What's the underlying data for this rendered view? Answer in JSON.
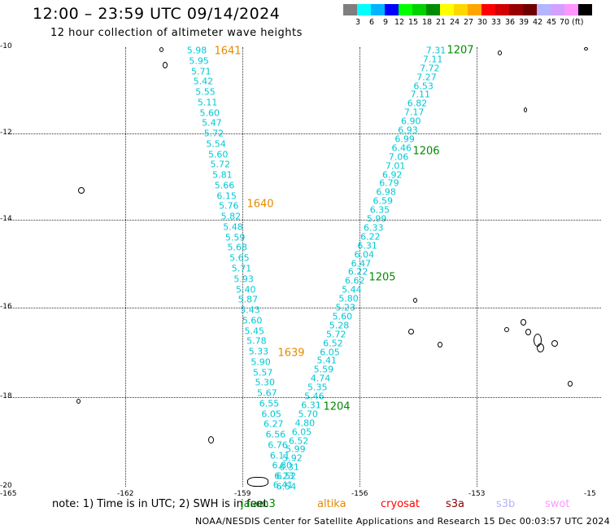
{
  "title": "12:00 – 23:59 UTC 09/14/2024",
  "subtitle": "12 hour collection of altimeter wave heights",
  "legend": {
    "colors": [
      "#7f7f7f",
      "#00ffff",
      "#00b4ff",
      "#0000ff",
      "#00ff00",
      "#00d200",
      "#008c00",
      "#ffff00",
      "#ffd700",
      "#ffa500",
      "#ff0000",
      "#d20000",
      "#960000",
      "#6e0000",
      "#b4b4ff",
      "#d2a0ff",
      "#ff96ff",
      "#000000"
    ],
    "labels": [
      "3",
      "6",
      "9",
      "12",
      "15",
      "18",
      "21",
      "24",
      "27",
      "30",
      "33",
      "36",
      "39",
      "42",
      "45",
      "70 (ft)"
    ]
  },
  "axes": {
    "lat_labels": [
      "-10",
      "-12",
      "-14",
      "-16",
      "-18",
      "-20"
    ],
    "lon_labels": [
      "-165",
      "-162",
      "-159",
      "-156",
      "-153",
      "-15"
    ]
  },
  "passes": [
    {
      "name": "1641",
      "color": "#e68a00"
    },
    {
      "name": "1640",
      "color": "#e68a00"
    },
    {
      "name": "1639",
      "color": "#e68a00"
    },
    {
      "name": "1207",
      "color": "#008c00"
    },
    {
      "name": "1206",
      "color": "#008c00"
    },
    {
      "name": "1205",
      "color": "#008c00"
    },
    {
      "name": "1204",
      "color": "#008c00"
    }
  ],
  "swh_left": [
    "5.98",
    "5.95",
    "5.71",
    "5.42",
    "5.55",
    "5.11",
    "5.60",
    "5.47",
    "5.72",
    "5.54",
    "5.60",
    "5.72",
    "5.81",
    "5.66",
    "6.15",
    "5.76",
    "5.82",
    "5.48",
    "5.59",
    "5.68",
    "5.65",
    "5.71",
    "5.93",
    "5.40",
    "5.87",
    "5.43",
    "5.60",
    "5.45",
    "5.78",
    "5.33",
    "5.90",
    "5.57",
    "5.30",
    "5.67",
    "6.55",
    "6.05",
    "6.27",
    "6.56",
    "6.76",
    "6.11",
    "6.80",
    "6.23",
    "6.54"
  ],
  "swh_right": [
    "7.31",
    "7.11",
    "7.72",
    "7.27",
    "6.53",
    "7.11",
    "6.82",
    "7.17",
    "6.90",
    "6.93",
    "6.99",
    "6.46",
    "7.06",
    "7.01",
    "6.92",
    "6.79",
    "6.98",
    "6.59",
    "6.35",
    "5.99",
    "6.33",
    "6.22",
    "6.31",
    "6.04",
    "6.47",
    "6.22",
    "6.62",
    "5.44",
    "5.80",
    "5.23",
    "5.60",
    "5.28",
    "5.72",
    "6.52",
    "6.05",
    "5.41",
    "5.59",
    "4.74",
    "5.35",
    "5.46",
    "6.31",
    "5.70",
    "4.80",
    "6.05",
    "6.52",
    "5.99",
    "5.92",
    "6.31",
    "6.52",
    "6.41"
  ],
  "note": "note:  1) Time is in UTC;  2) SWH is in feet",
  "satellites": [
    {
      "name": "jason3",
      "color": "#008c00"
    },
    {
      "name": "altika",
      "color": "#e68a00"
    },
    {
      "name": "cryosat",
      "color": "#ff0000"
    },
    {
      "name": "s3a",
      "color": "#8b0000"
    },
    {
      "name": "s3b",
      "color": "#b4b4ff"
    },
    {
      "name": "swot",
      "color": "#ff96ff"
    }
  ],
  "footer": "NOAA/NESDIS Center for Satellite Applications and Research    15 Dec 00:03:57 UTC 2024"
}
